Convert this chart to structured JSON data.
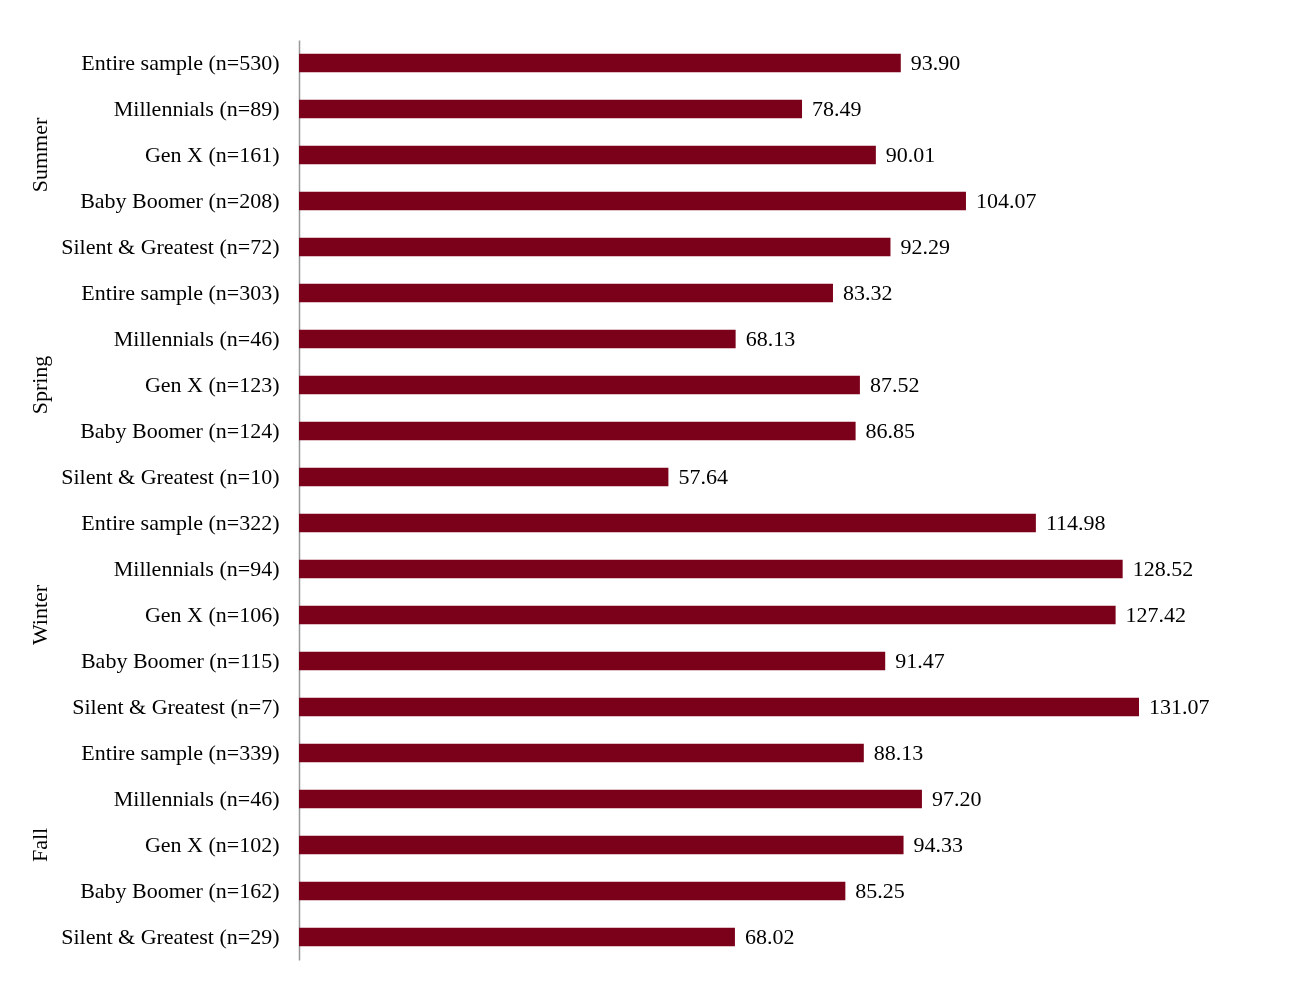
{
  "chart_data": {
    "type": "bar",
    "orientation": "horizontal",
    "color": "#7b0019",
    "categories": [
      "Entire sample (n=530)",
      "Millennials (n=89)",
      "Gen X (n=161)",
      "Baby  Boomer (n=208)",
      "Silent & Greatest (n=72)",
      "Entire sample (n=303)",
      "Millennials (n=46)",
      "Gen X (n=123)",
      "Baby Boomer (n=124)",
      "Silent & Greatest (n=10)",
      "Entire sample (n=322)",
      "Millennials (n=94)",
      "Gen X (n=106)",
      "Baby Boomer (n=115)",
      "Silent & Greatest (n=7)",
      "Entire sample (n=339)",
      "Millennials (n=46)",
      "Gen X (n=102)",
      "Baby Boomer (n=162)",
      "Silent & Greatest (n=29)"
    ],
    "values": [
      93.9,
      78.49,
      90.01,
      104.07,
      92.29,
      83.32,
      68.13,
      87.52,
      86.85,
      57.64,
      114.98,
      128.52,
      127.42,
      91.47,
      131.07,
      88.13,
      97.2,
      94.33,
      85.25,
      68.02
    ],
    "value_labels": [
      "93.90",
      "78.49",
      "90.01",
      "104.07",
      "92.29",
      "83.32",
      "68.13",
      "87.52",
      "86.85",
      "57.64",
      "114.98",
      "128.52",
      "127.42",
      "91.47",
      "131.07",
      "88.13",
      "97.20",
      "94.33",
      "85.25",
      "68.02"
    ],
    "annotations": [
      "Summer",
      "Spring",
      "Winter",
      "Fall"
    ]
  }
}
